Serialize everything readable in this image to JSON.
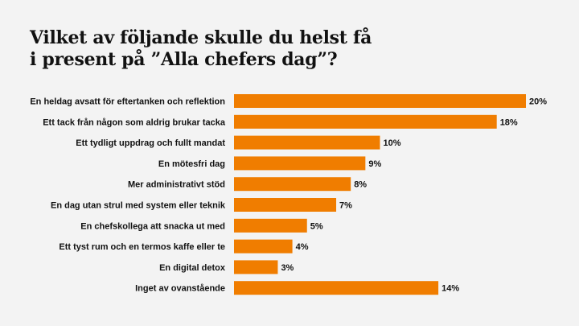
{
  "chart_data": {
    "type": "bar",
    "orientation": "horizontal",
    "title": "Vilket av följande skulle du helst få\ni present på ”Alla chefers dag”?",
    "categories": [
      "En heldag avsatt för eftertanken och reflektion",
      "Ett tack från någon som aldrig brukar tacka",
      "Ett tydligt uppdrag och fullt mandat",
      "En mötesfri dag",
      "Mer administrativt stöd",
      "En dag utan strul med system eller teknik",
      "En chefskollega att snacka ut med",
      "Ett tyst rum och en termos kaffe eller te",
      "En digital detox",
      "Inget av ovanstående"
    ],
    "values": [
      20,
      18,
      10,
      9,
      8,
      7,
      5,
      4,
      3,
      14
    ],
    "value_labels": [
      "20%",
      "18%",
      "10%",
      "9%",
      "8%",
      "7%",
      "5%",
      "4%",
      "3%",
      "14%"
    ],
    "unit": "%",
    "xlim": [
      0,
      20
    ],
    "grid": false,
    "bar_color": "#f07d00",
    "background": "#f3f3f3"
  }
}
